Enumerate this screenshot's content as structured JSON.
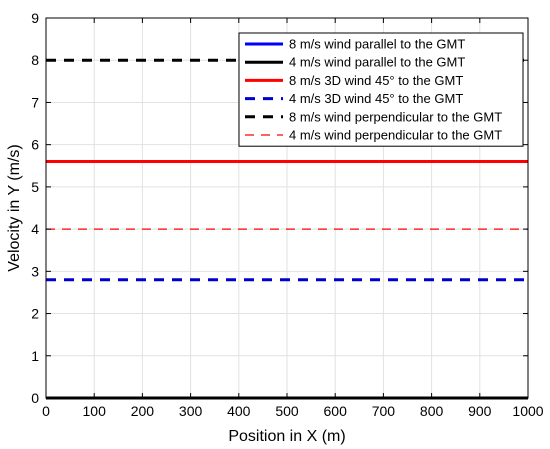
{
  "chart_data": {
    "type": "line",
    "title": "",
    "xlabel": "Position in X (m)",
    "ylabel": "Velocity in Y (m/s)",
    "xlim": [
      0,
      1000
    ],
    "ylim": [
      0,
      9
    ],
    "xticks": [
      0,
      100,
      200,
      300,
      400,
      500,
      600,
      700,
      800,
      900,
      1000
    ],
    "yticks": [
      0,
      1,
      2,
      3,
      4,
      5,
      6,
      7,
      8,
      9
    ],
    "grid": true,
    "legend_position": "top-right",
    "series": [
      {
        "name": "8 m/s wind parallel to the GMT",
        "x": [
          0,
          1000
        ],
        "y": [
          0,
          0
        ],
        "color": "#0000ff",
        "style": "solid",
        "weight": "thick"
      },
      {
        "name": "4 m/s wind parallel to the GMT",
        "x": [
          0,
          1000
        ],
        "y": [
          0,
          0
        ],
        "color": "#000000",
        "style": "solid",
        "weight": "thick"
      },
      {
        "name": "8 m/s 3D wind 45° to the GMT",
        "x": [
          0,
          1000
        ],
        "y": [
          5.6,
          5.6
        ],
        "color": "#ff0000",
        "style": "solid",
        "weight": "thick"
      },
      {
        "name": "4 m/s 3D wind 45° to the GMT",
        "x": [
          0,
          1000
        ],
        "y": [
          2.8,
          2.8
        ],
        "color": "#0000cd",
        "style": "dashed",
        "weight": "thick"
      },
      {
        "name": "8 m/s wind perpendicular to the GMT",
        "x": [
          0,
          1000
        ],
        "y": [
          8.0,
          8.0
        ],
        "color": "#000000",
        "style": "dashed",
        "weight": "thick"
      },
      {
        "name": "4 m/s wind perpendicular to the GMT",
        "x": [
          0,
          1000
        ],
        "y": [
          4.0,
          4.0
        ],
        "color": "#ff0000",
        "style": "dashed",
        "weight": "thin"
      }
    ]
  }
}
